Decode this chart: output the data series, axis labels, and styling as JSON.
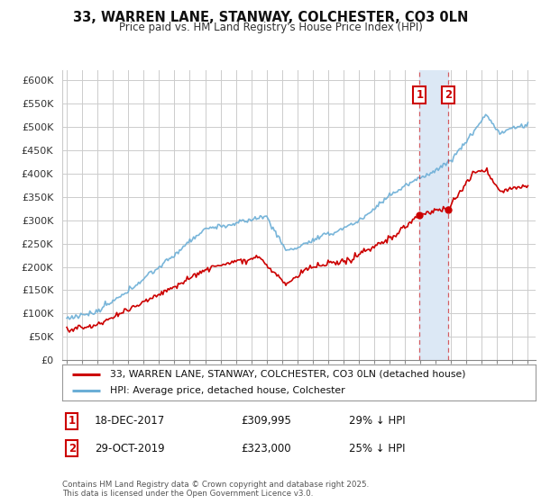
{
  "title": "33, WARREN LANE, STANWAY, COLCHESTER, CO3 0LN",
  "subtitle": "Price paid vs. HM Land Registry's House Price Index (HPI)",
  "ylabel_vals": [
    "£0",
    "£50K",
    "£100K",
    "£150K",
    "£200K",
    "£250K",
    "£300K",
    "£350K",
    "£400K",
    "£450K",
    "£500K",
    "£550K",
    "£600K"
  ],
  "ytick_vals": [
    0,
    50000,
    100000,
    150000,
    200000,
    250000,
    300000,
    350000,
    400000,
    450000,
    500000,
    550000,
    600000
  ],
  "xlim": [
    1994.7,
    2025.5
  ],
  "ylim": [
    0,
    620000
  ],
  "bg_color": "#ffffff",
  "grid_color": "#cccccc",
  "line1_color": "#cc0000",
  "line2_color": "#6baed6",
  "sale1_x": 2017.96,
  "sale1_y": 309995,
  "sale2_x": 2019.83,
  "sale2_y": 323000,
  "vline_color": "#cc0000",
  "span_color": "#dce8f5",
  "legend_label1": "33, WARREN LANE, STANWAY, COLCHESTER, CO3 0LN (detached house)",
  "legend_label2": "HPI: Average price, detached house, Colchester",
  "note1_date": "18-DEC-2017",
  "note1_price": "£309,995",
  "note1_hpi": "29% ↓ HPI",
  "note2_date": "29-OCT-2019",
  "note2_price": "£323,000",
  "note2_hpi": "25% ↓ HPI",
  "footer": "Contains HM Land Registry data © Crown copyright and database right 2025.\nThis data is licensed under the Open Government Licence v3.0."
}
